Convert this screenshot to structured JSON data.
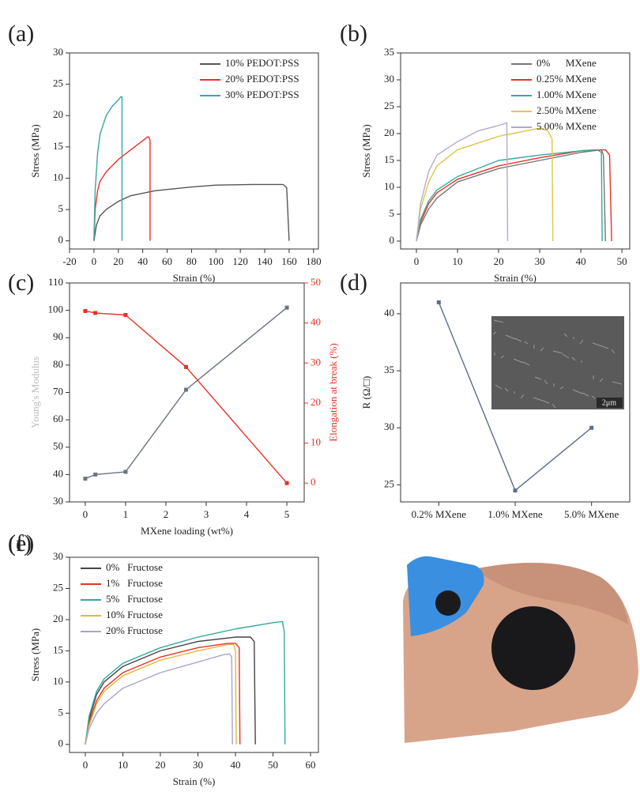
{
  "chart_data": [
    {
      "type": "line",
      "panel": "(a)",
      "xlabel": "Strain (%)",
      "ylabel": "Stress (MPa)",
      "xlim": [
        -20,
        184
      ],
      "xticks": [
        -20,
        0,
        20,
        40,
        60,
        80,
        100,
        120,
        140,
        160,
        180
      ],
      "ylim": [
        -1.3,
        30
      ],
      "yticks": [
        0,
        5,
        10,
        15,
        20,
        25,
        30
      ],
      "legend": "upper right",
      "series": [
        {
          "name": "10% PEDOT:PSS",
          "color": "#555555",
          "x": [
            0,
            2,
            5,
            10,
            20,
            30,
            50,
            80,
            100,
            130,
            155,
            158,
            160
          ],
          "values": [
            0,
            2.5,
            4,
            5,
            6.3,
            7.2,
            8,
            8.6,
            8.9,
            9,
            9,
            8.5,
            0
          ]
        },
        {
          "name": "20% PEDOT:PSS",
          "color": "#e53227",
          "x": [
            0,
            1,
            3,
            5,
            10,
            20,
            30,
            40,
            44,
            45,
            46,
            46
          ],
          "values": [
            0,
            5,
            8,
            9.5,
            11,
            13,
            14.5,
            16,
            16.6,
            16.6,
            16,
            0
          ]
        },
        {
          "name": "30% PEDOT:PSS",
          "color": "#35a99e",
          "x": [
            0,
            1,
            3,
            5,
            10,
            15,
            20,
            22,
            23,
            23
          ],
          "values": [
            0,
            8,
            14,
            17,
            20,
            21.5,
            22.5,
            23,
            23,
            0
          ]
        }
      ]
    },
    {
      "type": "line",
      "panel": "(b)",
      "xlabel": "Strain (%)",
      "ylabel": "Stress (MPa)",
      "xlim": [
        -3.85,
        51.9
      ],
      "xticks": [
        0,
        10,
        20,
        30,
        40,
        50
      ],
      "ylim": [
        -1.47,
        35
      ],
      "yticks": [
        0,
        5,
        10,
        15,
        20,
        25,
        30,
        35
      ],
      "legend": "upper right",
      "series": [
        {
          "name": "0%      MXene",
          "color": "#777777",
          "x": [
            0,
            1,
            3,
            5,
            10,
            20,
            30,
            40,
            45,
            45.5,
            46
          ],
          "values": [
            0,
            3,
            6,
            8,
            11,
            13.5,
            15,
            16.5,
            17,
            16,
            0
          ]
        },
        {
          "name": "0.25% MXene",
          "color": "#e53227",
          "x": [
            0,
            1,
            3,
            5,
            10,
            20,
            30,
            40,
            46,
            47,
            47.5
          ],
          "values": [
            0,
            3.5,
            7,
            9,
            11.5,
            14,
            15.5,
            16.8,
            17,
            16,
            0
          ]
        },
        {
          "name": "1.00% MXene",
          "color": "#35a99e",
          "x": [
            0,
            1,
            3,
            5,
            10,
            20,
            30,
            40,
            44,
            45,
            45.2
          ],
          "values": [
            0,
            4,
            7.5,
            9.5,
            12,
            15,
            16,
            16.8,
            17,
            16.5,
            0
          ]
        },
        {
          "name": "2.50% MXene",
          "color": "#e2c546",
          "x": [
            0,
            1,
            3,
            5,
            10,
            20,
            30,
            32,
            33,
            33.2
          ],
          "values": [
            0,
            6,
            11,
            14,
            17,
            19.5,
            21,
            20.5,
            19,
            0
          ]
        },
        {
          "name": "5.00% MXene",
          "color": "#b3abc9",
          "x": [
            0,
            1,
            3,
            5,
            10,
            15,
            20,
            22,
            22.2
          ],
          "values": [
            0,
            7,
            13,
            16,
            18.5,
            20.5,
            21.5,
            22,
            0
          ]
        }
      ]
    },
    {
      "type": "line",
      "panel": "(c)",
      "xlabel": "MXene loading (wt%)",
      "ylabel": "Young's Modulus",
      "y2label": "Elongation at break (%)",
      "ylabel_color": "#bbbbbb",
      "y2color": "#e53227",
      "xlim": [
        -0.39,
        5.43
      ],
      "xticks": [
        0,
        1,
        2,
        3,
        4,
        5
      ],
      "ylim": [
        30,
        110
      ],
      "yticks": [
        30,
        40,
        50,
        60,
        70,
        80,
        90,
        100,
        110
      ],
      "y2lim": [
        -4.7,
        50
      ],
      "y2ticks": [
        0,
        10,
        20,
        30,
        40,
        50
      ],
      "markers": true,
      "x": [
        0,
        0.25,
        1,
        2.5,
        5
      ],
      "series": [
        {
          "color": "#6b7480",
          "values": [
            38.5,
            40,
            41,
            71,
            101
          ]
        },
        {
          "color": "#e53227",
          "axis": "y2",
          "values": [
            43,
            42.5,
            42,
            29,
            0
          ]
        }
      ]
    },
    {
      "type": "line",
      "panel": "(d)",
      "ylabel": "R (Ω/□)",
      "inset_label": "2μm",
      "categories": [
        "0.2% MXene",
        "1.0% MXene",
        "5.0% MXene"
      ],
      "ylim": [
        23.5,
        42.7
      ],
      "yticks": [
        25,
        30,
        35,
        40
      ],
      "markers": true,
      "series": [
        {
          "color": "#5a6e8c",
          "values": [
            41,
            24.5,
            30
          ]
        }
      ]
    },
    {
      "type": "line",
      "panel": "(e)",
      "xlabel": "Strain (%)",
      "ylabel": "Stress (MPa)",
      "xlim": [
        -4.2,
        62.1
      ],
      "xticks": [
        0,
        10,
        20,
        30,
        40,
        50,
        60
      ],
      "ylim": [
        -1.3,
        30
      ],
      "yticks": [
        0,
        5,
        10,
        15,
        20,
        25,
        30
      ],
      "legend": "upper left",
      "series": [
        {
          "name": "0%   Fructose",
          "color": "#444444",
          "x": [
            0,
            1,
            3,
            5,
            10,
            20,
            30,
            40,
            44,
            45,
            45.3
          ],
          "values": [
            0,
            4,
            8,
            10,
            12.5,
            15,
            16.5,
            17.2,
            17.2,
            16.5,
            0
          ]
        },
        {
          "name": "1%   Fructose",
          "color": "#e53227",
          "x": [
            0,
            1,
            3,
            5,
            10,
            20,
            30,
            38,
            40,
            41,
            41.2
          ],
          "values": [
            0,
            3.5,
            7,
            9,
            11.5,
            14,
            15.5,
            16.2,
            16.2,
            15.5,
            0
          ]
        },
        {
          "name": "5%   Fructose",
          "color": "#35a99e",
          "x": [
            0,
            1,
            3,
            5,
            10,
            20,
            30,
            40,
            50,
            52.5,
            53,
            53.2
          ],
          "values": [
            0,
            4.5,
            8.5,
            10.5,
            13,
            15.5,
            17.2,
            18.5,
            19.5,
            19.7,
            18,
            0
          ]
        },
        {
          "name": "10% Fructose",
          "color": "#e8b53a",
          "x": [
            0,
            1,
            3,
            5,
            10,
            20,
            30,
            38,
            39.5,
            40,
            40.2
          ],
          "values": [
            0,
            3,
            6.5,
            8.5,
            11,
            13.5,
            15,
            16,
            16,
            15,
            0
          ]
        },
        {
          "name": "20% Fructose",
          "color": "#aaa3c9",
          "x": [
            0,
            1,
            3,
            5,
            10,
            20,
            30,
            37,
            38.5,
            39,
            39.2
          ],
          "values": [
            0,
            2.5,
            5,
            6.5,
            9,
            11.5,
            13.2,
            14.4,
            14.5,
            14,
            0
          ]
        }
      ]
    }
  ],
  "photo": {
    "panel": "(f)"
  }
}
